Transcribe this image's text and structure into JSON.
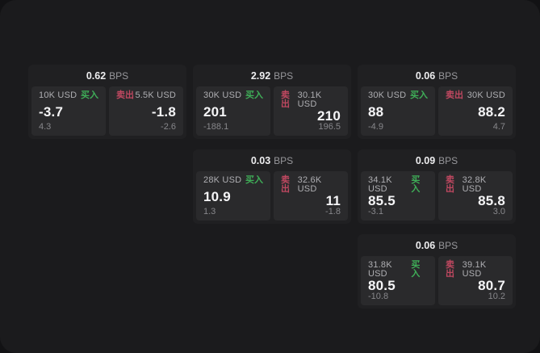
{
  "labels": {
    "bps": "BPS",
    "buy": "买入",
    "sell": "卖出"
  },
  "colors": {
    "background_outer": "#121214",
    "background_panel": "#1b1b1d",
    "card": "#202022",
    "tile": "#2a2a2c",
    "buy": "#3fae58",
    "sell": "#bf4860",
    "text_primary": "#f5f5f7",
    "text_muted": "#aeaeb2",
    "text_dim": "#87878b"
  },
  "cards": [
    {
      "bps": "0.62",
      "buy": {
        "notional": "10K USD",
        "price": "-3.7",
        "delta": "4.3"
      },
      "sell": {
        "notional": "5.5K USD",
        "price": "-1.8",
        "delta": "-2.6"
      }
    },
    {
      "bps": "2.92",
      "buy": {
        "notional": "30K USD",
        "price": "201",
        "delta": "-188.1"
      },
      "sell": {
        "notional": "30.1K USD",
        "price": "210",
        "delta": "196.5"
      }
    },
    {
      "bps": "0.06",
      "buy": {
        "notional": "30K USD",
        "price": "88",
        "delta": "-4.9"
      },
      "sell": {
        "notional": "30K USD",
        "price": "88.2",
        "delta": "4.7"
      }
    },
    {
      "bps": "0.03",
      "buy": {
        "notional": "28K USD",
        "price": "10.9",
        "delta": "1.3"
      },
      "sell": {
        "notional": "32.6K USD",
        "price": "11",
        "delta": "-1.8"
      }
    },
    {
      "bps": "0.09",
      "buy": {
        "notional": "34.1K USD",
        "price": "85.5",
        "delta": "-3.1"
      },
      "sell": {
        "notional": "32.8K USD",
        "price": "85.8",
        "delta": "3.0"
      }
    },
    {
      "bps": "0.06",
      "buy": {
        "notional": "31.8K USD",
        "price": "80.5",
        "delta": "-10.8"
      },
      "sell": {
        "notional": "39.1K USD",
        "price": "80.7",
        "delta": "10.2"
      }
    }
  ]
}
